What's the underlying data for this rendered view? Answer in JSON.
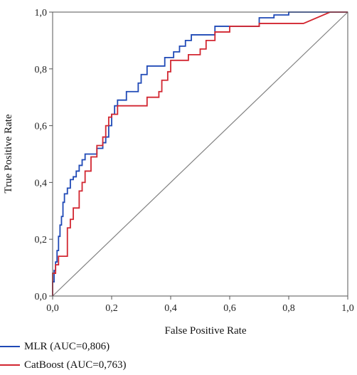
{
  "chart_data": {
    "type": "line",
    "xlabel": "False Positive Rate",
    "ylabel": "True Positive Rate",
    "xlim": [
      0,
      1
    ],
    "ylim": [
      0,
      1
    ],
    "x_ticks": [
      "0,0",
      "0,2",
      "0,4",
      "0,6",
      "0,8",
      "1,0"
    ],
    "y_ticks": [
      "0,0",
      "0,2",
      "0,4",
      "0,6",
      "0,8",
      "1,0"
    ],
    "grid": false,
    "legend_position": "bottom-left",
    "reference_line": {
      "x": [
        0,
        1
      ],
      "y": [
        0,
        1
      ],
      "color": "#808080"
    },
    "series": [
      {
        "name": "MLR (AUC=0,806)",
        "color": "#1f49b6",
        "x": [
          0.0,
          0.0,
          0.005,
          0.005,
          0.01,
          0.01,
          0.015,
          0.015,
          0.02,
          0.02,
          0.025,
          0.025,
          0.03,
          0.03,
          0.035,
          0.035,
          0.04,
          0.04,
          0.05,
          0.05,
          0.06,
          0.06,
          0.07,
          0.07,
          0.08,
          0.08,
          0.09,
          0.09,
          0.1,
          0.1,
          0.11,
          0.11,
          0.115,
          0.115,
          0.15,
          0.15,
          0.17,
          0.17,
          0.18,
          0.18,
          0.19,
          0.19,
          0.2,
          0.2,
          0.21,
          0.21,
          0.22,
          0.22,
          0.25,
          0.25,
          0.29,
          0.29,
          0.3,
          0.3,
          0.32,
          0.32,
          0.34,
          0.34,
          0.38,
          0.38,
          0.41,
          0.41,
          0.43,
          0.43,
          0.45,
          0.45,
          0.47,
          0.47,
          0.55,
          0.55,
          0.6,
          0.6,
          0.7,
          0.7,
          0.75,
          0.75,
          0.8,
          0.8,
          0.85,
          0.85,
          1.0
        ],
        "y": [
          0.0,
          0.05,
          0.05,
          0.09,
          0.09,
          0.12,
          0.12,
          0.16,
          0.16,
          0.21,
          0.21,
          0.25,
          0.25,
          0.28,
          0.28,
          0.33,
          0.33,
          0.36,
          0.36,
          0.38,
          0.38,
          0.41,
          0.41,
          0.42,
          0.42,
          0.44,
          0.44,
          0.46,
          0.46,
          0.48,
          0.48,
          0.5,
          0.5,
          0.5,
          0.5,
          0.52,
          0.52,
          0.54,
          0.54,
          0.56,
          0.56,
          0.6,
          0.6,
          0.64,
          0.64,
          0.67,
          0.67,
          0.69,
          0.69,
          0.72,
          0.72,
          0.75,
          0.75,
          0.78,
          0.78,
          0.81,
          0.81,
          0.81,
          0.81,
          0.84,
          0.84,
          0.86,
          0.86,
          0.88,
          0.88,
          0.9,
          0.9,
          0.92,
          0.92,
          0.95,
          0.95,
          0.95,
          0.95,
          0.98,
          0.98,
          0.99,
          0.99,
          1.0,
          1.0,
          1.0,
          1.0
        ]
      },
      {
        "name": "CatBoost (AUC=0,763)",
        "color": "#d22630",
        "x": [
          0.0,
          0.0,
          0.01,
          0.01,
          0.02,
          0.02,
          0.03,
          0.03,
          0.05,
          0.05,
          0.06,
          0.06,
          0.07,
          0.07,
          0.08,
          0.08,
          0.09,
          0.09,
          0.1,
          0.1,
          0.11,
          0.11,
          0.13,
          0.13,
          0.15,
          0.15,
          0.17,
          0.17,
          0.18,
          0.18,
          0.19,
          0.19,
          0.2,
          0.2,
          0.22,
          0.22,
          0.24,
          0.24,
          0.32,
          0.32,
          0.36,
          0.36,
          0.37,
          0.37,
          0.39,
          0.39,
          0.4,
          0.4,
          0.46,
          0.46,
          0.5,
          0.5,
          0.52,
          0.52,
          0.55,
          0.55,
          0.6,
          0.6,
          0.65,
          0.65,
          0.7,
          0.7,
          0.85,
          0.85,
          0.94,
          1.0
        ],
        "y": [
          0.0,
          0.08,
          0.08,
          0.11,
          0.11,
          0.14,
          0.14,
          0.14,
          0.14,
          0.24,
          0.24,
          0.27,
          0.27,
          0.31,
          0.31,
          0.31,
          0.31,
          0.37,
          0.37,
          0.4,
          0.4,
          0.44,
          0.44,
          0.49,
          0.49,
          0.53,
          0.53,
          0.56,
          0.56,
          0.6,
          0.6,
          0.63,
          0.63,
          0.64,
          0.64,
          0.67,
          0.67,
          0.67,
          0.67,
          0.7,
          0.7,
          0.72,
          0.72,
          0.76,
          0.76,
          0.79,
          0.79,
          0.83,
          0.83,
          0.85,
          0.85,
          0.87,
          0.87,
          0.9,
          0.9,
          0.93,
          0.93,
          0.95,
          0.95,
          0.95,
          0.95,
          0.96,
          0.96,
          0.96,
          1.0,
          1.0
        ]
      }
    ]
  }
}
